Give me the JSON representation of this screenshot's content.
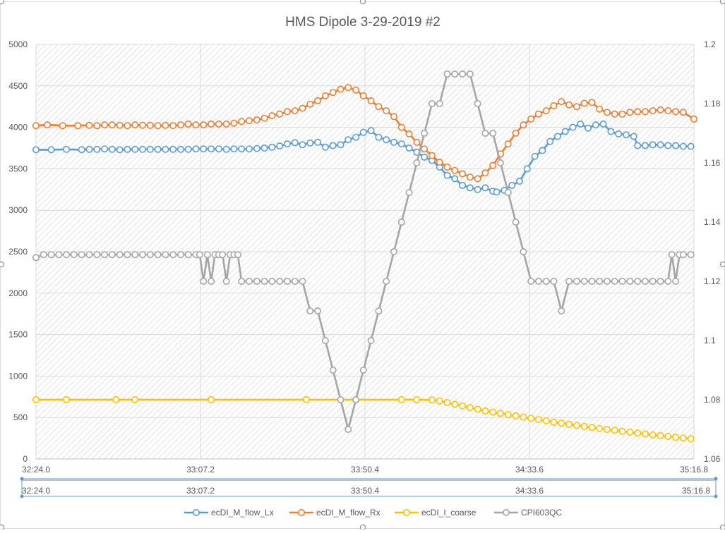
{
  "chart_data": {
    "type": "line",
    "title": "HMS Dipole 3-29-2019 #2",
    "x_labels": [
      "32:24.0",
      "33:07.2",
      "33:50.4",
      "34:33.6",
      "35:16.8"
    ],
    "secondary_x_labels": [
      "32:24.0",
      "33:07.2",
      "33:50.4",
      "34:33.6",
      "35:16.8"
    ],
    "x_range_seconds": [
      1944.0,
      2116.8
    ],
    "y_left": {
      "min": 0,
      "max": 5000,
      "ticks": [
        0,
        500,
        1000,
        1500,
        2000,
        2500,
        3000,
        3500,
        4000,
        4500,
        5000
      ]
    },
    "y_right": {
      "min": 1.06,
      "max": 1.2,
      "ticks": [
        "1.06",
        "1.08",
        "1.1",
        "1.12",
        "1.14",
        "1.16",
        "1.18",
        "1.2"
      ]
    },
    "grid": true,
    "legend_position": "bottom",
    "series": [
      {
        "name": "ecDI_M_flow_Lx",
        "color": "#5B9BD5",
        "axis": "left",
        "points": [
          [
            1944,
            3730
          ],
          [
            1948,
            3730
          ],
          [
            1952,
            3735
          ],
          [
            1956,
            3730
          ],
          [
            1958,
            3735
          ],
          [
            1960,
            3735
          ],
          [
            1962,
            3740
          ],
          [
            1964,
            3735
          ],
          [
            1966,
            3730
          ],
          [
            1968,
            3735
          ],
          [
            1970,
            3735
          ],
          [
            1972,
            3735
          ],
          [
            1974,
            3735
          ],
          [
            1976,
            3735
          ],
          [
            1978,
            3735
          ],
          [
            1980,
            3735
          ],
          [
            1982,
            3735
          ],
          [
            1984,
            3735
          ],
          [
            1986,
            3740
          ],
          [
            1988,
            3740
          ],
          [
            1990,
            3740
          ],
          [
            1992,
            3740
          ],
          [
            1994,
            3735
          ],
          [
            1996,
            3740
          ],
          [
            1998,
            3740
          ],
          [
            2000,
            3740
          ],
          [
            2002,
            3745
          ],
          [
            2004,
            3750
          ],
          [
            2006,
            3760
          ],
          [
            2008,
            3775
          ],
          [
            2010,
            3800
          ],
          [
            2012,
            3815
          ],
          [
            2014,
            3790
          ],
          [
            2016,
            3810
          ],
          [
            2018,
            3820
          ],
          [
            2020,
            3760
          ],
          [
            2022,
            3780
          ],
          [
            2024,
            3790
          ],
          [
            2026,
            3850
          ],
          [
            2028,
            3880
          ],
          [
            2030,
            3940
          ],
          [
            2032,
            3960
          ],
          [
            2034,
            3880
          ],
          [
            2036,
            3850
          ],
          [
            2038,
            3820
          ],
          [
            2040,
            3800
          ],
          [
            2042,
            3750
          ],
          [
            2044,
            3700
          ],
          [
            2046,
            3640
          ],
          [
            2048,
            3600
          ],
          [
            2050,
            3520
          ],
          [
            2052,
            3420
          ],
          [
            2054,
            3380
          ],
          [
            2056,
            3300
          ],
          [
            2058,
            3270
          ],
          [
            2060,
            3250
          ],
          [
            2062,
            3270
          ],
          [
            2064,
            3230
          ],
          [
            2065,
            3220
          ],
          [
            2067,
            3240
          ],
          [
            2069,
            3300
          ],
          [
            2071,
            3350
          ],
          [
            2073,
            3500
          ],
          [
            2075,
            3650
          ],
          [
            2077,
            3720
          ],
          [
            2079,
            3830
          ],
          [
            2081,
            3890
          ],
          [
            2083,
            3950
          ],
          [
            2085,
            4000
          ],
          [
            2087,
            4040
          ],
          [
            2089,
            3990
          ],
          [
            2091,
            4030
          ],
          [
            2093,
            4040
          ],
          [
            2095,
            3950
          ],
          [
            2097,
            3920
          ],
          [
            2099,
            3910
          ],
          [
            2101,
            3890
          ],
          [
            2102,
            3780
          ],
          [
            2104,
            3780
          ],
          [
            2106,
            3790
          ],
          [
            2108,
            3790
          ],
          [
            2110,
            3780
          ],
          [
            2112,
            3780
          ],
          [
            2114,
            3770
          ],
          [
            2116,
            3770
          ]
        ]
      },
      {
        "name": "ecDI_M_flow_Rx",
        "color": "#ED7D31",
        "axis": "left",
        "points": [
          [
            1944,
            4020
          ],
          [
            1947,
            4030
          ],
          [
            1951,
            4020
          ],
          [
            1955,
            4020
          ],
          [
            1958,
            4025
          ],
          [
            1960,
            4020
          ],
          [
            1962,
            4030
          ],
          [
            1964,
            4030
          ],
          [
            1966,
            4025
          ],
          [
            1968,
            4020
          ],
          [
            1970,
            4030
          ],
          [
            1972,
            4025
          ],
          [
            1974,
            4025
          ],
          [
            1976,
            4020
          ],
          [
            1978,
            4025
          ],
          [
            1980,
            4020
          ],
          [
            1982,
            4030
          ],
          [
            1984,
            4040
          ],
          [
            1986,
            4030
          ],
          [
            1988,
            4030
          ],
          [
            1990,
            4040
          ],
          [
            1992,
            4040
          ],
          [
            1994,
            4040
          ],
          [
            1996,
            4050
          ],
          [
            1998,
            4070
          ],
          [
            2000,
            4080
          ],
          [
            2002,
            4090
          ],
          [
            2004,
            4110
          ],
          [
            2006,
            4140
          ],
          [
            2008,
            4160
          ],
          [
            2010,
            4190
          ],
          [
            2012,
            4200
          ],
          [
            2014,
            4230
          ],
          [
            2016,
            4280
          ],
          [
            2018,
            4320
          ],
          [
            2020,
            4380
          ],
          [
            2022,
            4420
          ],
          [
            2024,
            4460
          ],
          [
            2026,
            4480
          ],
          [
            2028,
            4450
          ],
          [
            2030,
            4380
          ],
          [
            2032,
            4320
          ],
          [
            2034,
            4250
          ],
          [
            2036,
            4200
          ],
          [
            2038,
            4130
          ],
          [
            2040,
            4000
          ],
          [
            2042,
            3920
          ],
          [
            2044,
            3820
          ],
          [
            2046,
            3740
          ],
          [
            2048,
            3660
          ],
          [
            2050,
            3580
          ],
          [
            2052,
            3520
          ],
          [
            2054,
            3480
          ],
          [
            2056,
            3440
          ],
          [
            2058,
            3400
          ],
          [
            2060,
            3380
          ],
          [
            2062,
            3450
          ],
          [
            2064,
            3540
          ],
          [
            2066,
            3680
          ],
          [
            2068,
            3800
          ],
          [
            2070,
            3930
          ],
          [
            2072,
            4030
          ],
          [
            2074,
            4100
          ],
          [
            2076,
            4160
          ],
          [
            2078,
            4200
          ],
          [
            2080,
            4260
          ],
          [
            2082,
            4310
          ],
          [
            2084,
            4270
          ],
          [
            2086,
            4250
          ],
          [
            2088,
            4290
          ],
          [
            2090,
            4300
          ],
          [
            2092,
            4220
          ],
          [
            2094,
            4180
          ],
          [
            2096,
            4160
          ],
          [
            2098,
            4160
          ],
          [
            2100,
            4180
          ],
          [
            2102,
            4190
          ],
          [
            2104,
            4190
          ],
          [
            2106,
            4200
          ],
          [
            2108,
            4210
          ],
          [
            2110,
            4200
          ],
          [
            2112,
            4190
          ],
          [
            2114,
            4180
          ],
          [
            2116.8,
            4100
          ]
        ]
      },
      {
        "name": "ecDI_I_coarse",
        "color": "#FFC000",
        "axis": "left",
        "points": [
          [
            1944,
            715
          ],
          [
            1952,
            715
          ],
          [
            1965,
            715
          ],
          [
            1970,
            715
          ],
          [
            1990,
            715
          ],
          [
            2015,
            715
          ],
          [
            2040,
            715
          ],
          [
            2044,
            715
          ],
          [
            2048,
            712
          ],
          [
            2050,
            700
          ],
          [
            2052,
            680
          ],
          [
            2054,
            660
          ],
          [
            2056,
            640
          ],
          [
            2058,
            620
          ],
          [
            2060,
            600
          ],
          [
            2062,
            580
          ],
          [
            2064,
            565
          ],
          [
            2066,
            550
          ],
          [
            2068,
            535
          ],
          [
            2070,
            520
          ],
          [
            2072,
            505
          ],
          [
            2074,
            490
          ],
          [
            2076,
            475
          ],
          [
            2078,
            460
          ],
          [
            2080,
            445
          ],
          [
            2082,
            432
          ],
          [
            2084,
            418
          ],
          [
            2086,
            405
          ],
          [
            2088,
            392
          ],
          [
            2090,
            380
          ],
          [
            2092,
            368
          ],
          [
            2094,
            356
          ],
          [
            2096,
            345
          ],
          [
            2098,
            334
          ],
          [
            2100,
            323
          ],
          [
            2102,
            312
          ],
          [
            2104,
            302
          ],
          [
            2106,
            292
          ],
          [
            2108,
            282
          ],
          [
            2110,
            272
          ],
          [
            2112,
            262
          ],
          [
            2114,
            253
          ],
          [
            2116,
            244
          ]
        ]
      },
      {
        "name": "CPI603QC",
        "color": "#A5A5A5",
        "axis": "right",
        "points": [
          [
            1944,
            1.128
          ],
          [
            1946,
            1.129
          ],
          [
            1948,
            1.129
          ],
          [
            1950,
            1.129
          ],
          [
            1952,
            1.129
          ],
          [
            1954,
            1.129
          ],
          [
            1956,
            1.129
          ],
          [
            1958,
            1.129
          ],
          [
            1960,
            1.129
          ],
          [
            1962,
            1.129
          ],
          [
            1964,
            1.129
          ],
          [
            1966,
            1.129
          ],
          [
            1968,
            1.129
          ],
          [
            1970,
            1.129
          ],
          [
            1972,
            1.129
          ],
          [
            1974,
            1.129
          ],
          [
            1976,
            1.129
          ],
          [
            1978,
            1.129
          ],
          [
            1980,
            1.129
          ],
          [
            1982,
            1.129
          ],
          [
            1984,
            1.129
          ],
          [
            1986,
            1.129
          ],
          [
            1987,
            1.129
          ],
          [
            1988,
            1.12
          ],
          [
            1989,
            1.129
          ],
          [
            1990,
            1.12
          ],
          [
            1991,
            1.129
          ],
          [
            1992,
            1.129
          ],
          [
            1993,
            1.129
          ],
          [
            1994,
            1.12
          ],
          [
            1995,
            1.129
          ],
          [
            1996,
            1.129
          ],
          [
            1997,
            1.129
          ],
          [
            1998,
            1.12
          ],
          [
            2000,
            1.12
          ],
          [
            2002,
            1.12
          ],
          [
            2004,
            1.12
          ],
          [
            2006,
            1.12
          ],
          [
            2008,
            1.12
          ],
          [
            2010,
            1.12
          ],
          [
            2012,
            1.12
          ],
          [
            2014,
            1.12
          ],
          [
            2016,
            1.11
          ],
          [
            2018,
            1.11
          ],
          [
            2020,
            1.1
          ],
          [
            2022,
            1.09
          ],
          [
            2024,
            1.08
          ],
          [
            2026,
            1.07
          ],
          [
            2028,
            1.08
          ],
          [
            2030,
            1.09
          ],
          [
            2032,
            1.1
          ],
          [
            2034,
            1.11
          ],
          [
            2036,
            1.12
          ],
          [
            2038,
            1.13
          ],
          [
            2040,
            1.14
          ],
          [
            2042,
            1.15
          ],
          [
            2044,
            1.16
          ],
          [
            2046,
            1.17
          ],
          [
            2048,
            1.18
          ],
          [
            2050,
            1.18
          ],
          [
            2052,
            1.19
          ],
          [
            2054,
            1.19
          ],
          [
            2056,
            1.19
          ],
          [
            2058,
            1.19
          ],
          [
            2060,
            1.18
          ],
          [
            2062,
            1.17
          ],
          [
            2064,
            1.17
          ],
          [
            2066,
            1.16
          ],
          [
            2068,
            1.15
          ],
          [
            2070,
            1.14
          ],
          [
            2072,
            1.13
          ],
          [
            2074,
            1.12
          ],
          [
            2076,
            1.12
          ],
          [
            2078,
            1.12
          ],
          [
            2080,
            1.12
          ],
          [
            2082,
            1.11
          ],
          [
            2084,
            1.12
          ],
          [
            2086,
            1.12
          ],
          [
            2088,
            1.12
          ],
          [
            2090,
            1.12
          ],
          [
            2092,
            1.12
          ],
          [
            2094,
            1.12
          ],
          [
            2096,
            1.12
          ],
          [
            2098,
            1.12
          ],
          [
            2100,
            1.12
          ],
          [
            2102,
            1.12
          ],
          [
            2104,
            1.12
          ],
          [
            2106,
            1.12
          ],
          [
            2108,
            1.12
          ],
          [
            2110,
            1.12
          ],
          [
            2111,
            1.129
          ],
          [
            2112,
            1.12
          ],
          [
            2113,
            1.129
          ],
          [
            2114,
            1.129
          ],
          [
            2116,
            1.129
          ]
        ]
      }
    ]
  }
}
